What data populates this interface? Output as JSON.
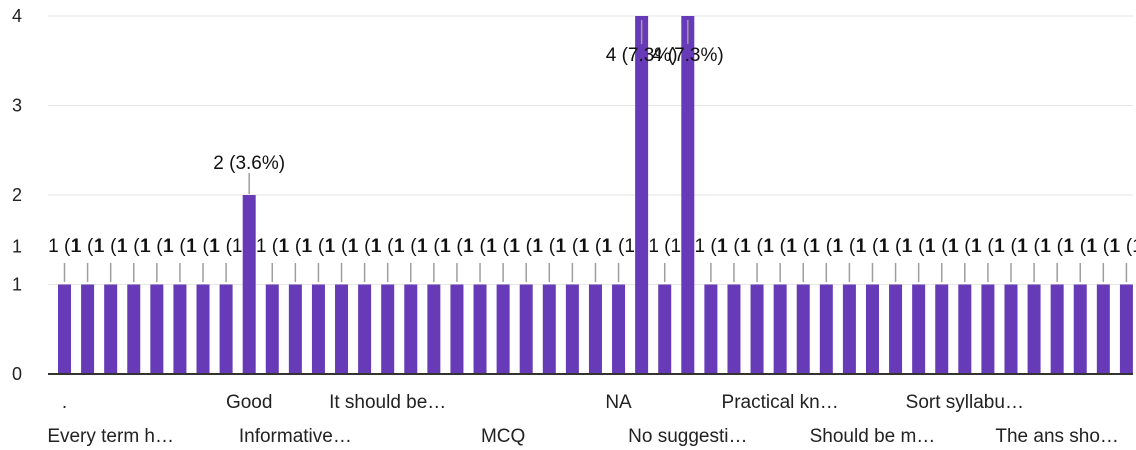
{
  "chart_data": {
    "type": "bar",
    "ylim": [
      0,
      4
    ],
    "yticks": [
      "0",
      "1",
      "1",
      "2",
      "3",
      "4"
    ],
    "grid": true,
    "bar_color": "#673ab7",
    "values": [
      1,
      1,
      1,
      1,
      1,
      1,
      1,
      1,
      2,
      1,
      1,
      1,
      1,
      1,
      1,
      1,
      1,
      1,
      1,
      1,
      1,
      1,
      1,
      1,
      1,
      4,
      1,
      4,
      1,
      1,
      1,
      1,
      1,
      1,
      1,
      1,
      1,
      1,
      1,
      1,
      1,
      1,
      1,
      1,
      1,
      1,
      1
    ],
    "value_labels": [
      "1 (1",
      "1 (1",
      "1 (1",
      "1 (1",
      "1 (1",
      "1 (1",
      "1 (1",
      "1 (1",
      "2 (3.6%)",
      "1 (1",
      "1 (1",
      "1 (1",
      "1 (1",
      "1 (1",
      "1 (1",
      "1 (1",
      "1 (1",
      "1 (1",
      "1 (1",
      "1 (1",
      "1 (1",
      "1 (1",
      "1 (1",
      "1 (1",
      "1 (1",
      "4 (7.3%)",
      "1 (1",
      "4 (7.3%)",
      "1 (1",
      "1 (1",
      "1 (1",
      "1 (1",
      "1 (1",
      "1 (1",
      "1 (1",
      "1 (1",
      "1 (1",
      "1 (1",
      "1 (1",
      "1 (1",
      "1 (1",
      "1 (1",
      "1 (1",
      "1 (1",
      "1 (1",
      "1 (1",
      "1 (1"
    ],
    "category_labels": [
      {
        "index": 0,
        "text": ".",
        "row": 1
      },
      {
        "index": 2,
        "text": "Every term h…",
        "row": 2
      },
      {
        "index": 8,
        "text": "Good",
        "row": 1
      },
      {
        "index": 10,
        "text": "Informative…",
        "row": 2
      },
      {
        "index": 14,
        "text": "It should be…",
        "row": 1
      },
      {
        "index": 19,
        "text": "MCQ",
        "row": 2
      },
      {
        "index": 24,
        "text": "NA",
        "row": 1
      },
      {
        "index": 27,
        "text": "No suggesti…",
        "row": 2
      },
      {
        "index": 31,
        "text": "Practical kn…",
        "row": 1
      },
      {
        "index": 35,
        "text": "Should be m…",
        "row": 2
      },
      {
        "index": 39,
        "text": "Sort syllabu…",
        "row": 1
      },
      {
        "index": 43,
        "text": "The ans sho…",
        "row": 2
      }
    ]
  }
}
